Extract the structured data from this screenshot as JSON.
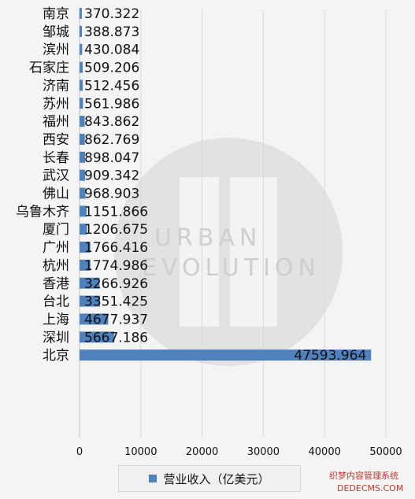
{
  "chart_data": {
    "type": "bar",
    "orientation": "horizontal",
    "categories": [
      "南京",
      "邹城",
      "滨州",
      "石家庄",
      "济南",
      "苏州",
      "福州",
      "西安",
      "长春",
      "武汉",
      "佛山",
      "乌鲁木齐",
      "厦门",
      "广州",
      "杭州",
      "香港",
      "台北",
      "上海",
      "深圳",
      "北京"
    ],
    "series": [
      {
        "name": "营业收入（亿美元）",
        "color": "#4f81bd",
        "values": [
          370.322,
          388.873,
          430.084,
          509.206,
          512.456,
          561.986,
          843.862,
          862.769,
          898.047,
          909.342,
          968.903,
          1151.866,
          1206.675,
          1766.416,
          1774.986,
          3266.926,
          3351.425,
          4677.937,
          5667.186,
          47593.964
        ]
      }
    ],
    "data_labels": [
      "370.322",
      "388.873",
      "430.084",
      "509.206",
      "512.456",
      "561.986",
      "843.862",
      "862.769",
      "898.047",
      "909.342",
      "968.903",
      "1151.866",
      "1206.675",
      "1766.416",
      "1774.986",
      "3266.926",
      "3351.425",
      "4677.937",
      "5667.186",
      "47593.964"
    ],
    "xlim": [
      0,
      50000
    ],
    "xticks": [
      0,
      10000,
      20000,
      30000,
      40000,
      50000
    ],
    "xtick_labels": [
      "0",
      "10000",
      "20000",
      "30000",
      "40000",
      "50000"
    ],
    "grid": "vertical",
    "legend": "bottom",
    "title": "",
    "xlabel": "",
    "ylabel": ""
  },
  "watermark": {
    "logo_text": "UE",
    "text_line1": "URBAN",
    "text_line2": "EVOLUTION"
  },
  "site_watermark": {
    "line1": "织梦内容管理系统",
    "line2": "DEDECMS.COM"
  }
}
